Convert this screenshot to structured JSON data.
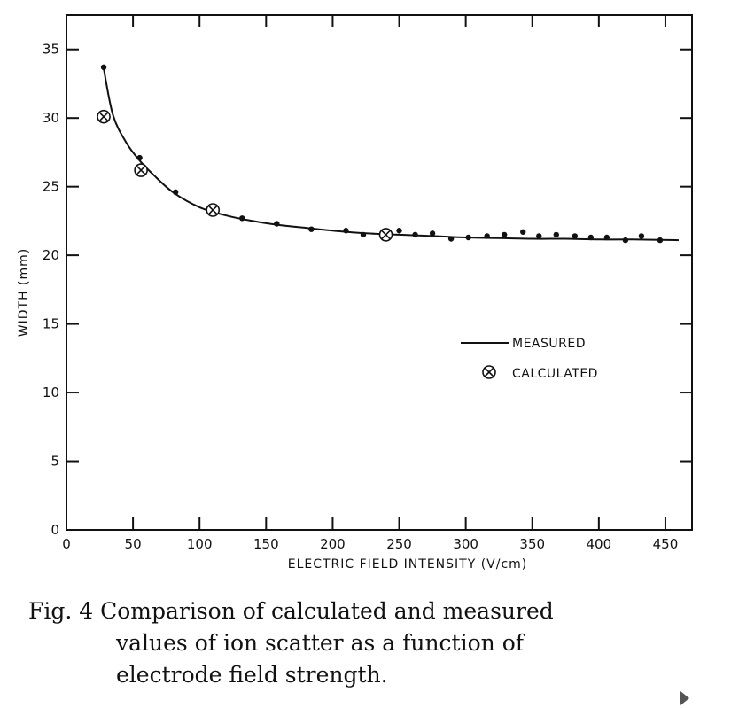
{
  "chart_data": {
    "type": "line",
    "xlabel": "ELECTRIC FIELD INTENSITY (V/cm)",
    "ylabel": "WIDTH (mm)",
    "xlim": [
      0,
      470
    ],
    "ylim": [
      0,
      37.5
    ],
    "x_ticks": [
      0,
      50,
      100,
      150,
      200,
      250,
      300,
      350,
      400,
      450
    ],
    "y_ticks": [
      0,
      5,
      10,
      15,
      20,
      25,
      30,
      35
    ],
    "legend": {
      "placement": "center-right",
      "entries": [
        "MEASURED",
        "CALCULATED"
      ]
    },
    "series": [
      {
        "name": "MEASURED",
        "style": "curve-with-dots",
        "curve": {
          "x": [
            28,
            35,
            45,
            55,
            65,
            80,
            100,
            120,
            140,
            160,
            180,
            200,
            225,
            250,
            275,
            300,
            325,
            350,
            375,
            400,
            425,
            460
          ],
          "y": [
            33.6,
            30.2,
            28.2,
            26.9,
            25.9,
            24.6,
            23.5,
            22.9,
            22.5,
            22.2,
            22.0,
            21.8,
            21.6,
            21.5,
            21.4,
            21.3,
            21.25,
            21.2,
            21.2,
            21.15,
            21.15,
            21.1
          ]
        },
        "points": {
          "x": [
            28,
            55,
            82,
            107,
            132,
            158,
            184,
            210,
            223,
            250,
            262,
            275,
            289,
            302,
            316,
            329,
            343,
            355,
            368,
            382,
            394,
            406,
            420,
            432,
            446
          ],
          "y": [
            33.7,
            27.1,
            24.6,
            23.4,
            22.7,
            22.3,
            21.9,
            21.8,
            21.5,
            21.8,
            21.5,
            21.6,
            21.2,
            21.3,
            21.4,
            21.5,
            21.7,
            21.4,
            21.5,
            21.4,
            21.3,
            21.3,
            21.1,
            21.4,
            21.1
          ]
        }
      },
      {
        "name": "CALCULATED",
        "style": "circled-x",
        "x": [
          28,
          56,
          110,
          240
        ],
        "y": [
          30.1,
          26.2,
          23.3,
          21.5
        ]
      }
    ]
  },
  "caption": {
    "lead": "Fig. 4 Comparison of calculated and measured",
    "line2": "values of ion scatter as a function of",
    "line3": "electrode field strength."
  }
}
